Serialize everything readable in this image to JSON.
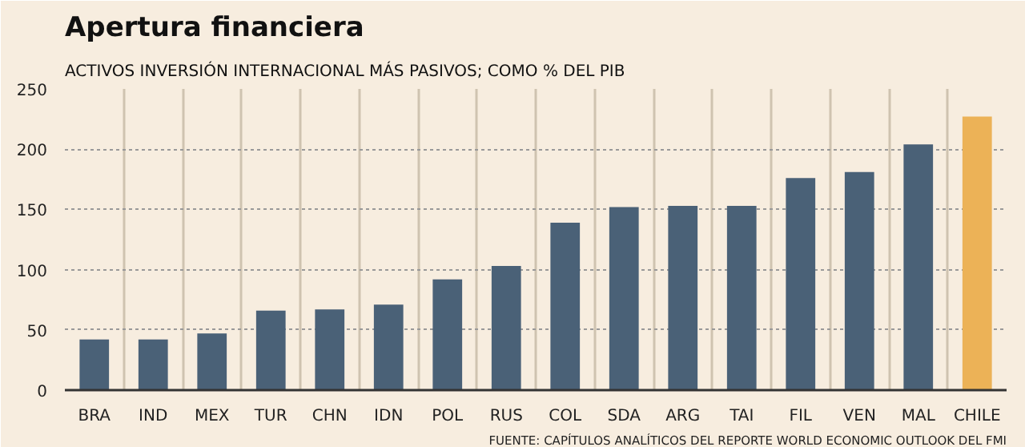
{
  "chart_data": {
    "type": "bar",
    "title": "Apertura financiera",
    "subtitle": "ACTIVOS INVERSIÓN INTERNACIONAL MÁS PASIVOS; COMO % DEL PIB",
    "categories": [
      "BRA",
      "IND",
      "MEX",
      "TUR",
      "CHN",
      "IDN",
      "POL",
      "RUS",
      "COL",
      "SDA",
      "ARG",
      "TAI",
      "FIL",
      "VEN",
      "MAL",
      "CHILE"
    ],
    "values": [
      42,
      42,
      47,
      66,
      67,
      71,
      92,
      103,
      139,
      152,
      153,
      153,
      176,
      181,
      204,
      227
    ],
    "colors": [
      "#4a6177",
      "#4a6177",
      "#4a6177",
      "#4a6177",
      "#4a6177",
      "#4a6177",
      "#4a6177",
      "#4a6177",
      "#4a6177",
      "#4a6177",
      "#4a6177",
      "#4a6177",
      "#4a6177",
      "#4a6177",
      "#4a6177",
      "#ecb257"
    ],
    "ylim": [
      0,
      250
    ],
    "yticks": [
      0,
      50,
      100,
      150,
      200,
      250
    ],
    "grid": true,
    "annotations": [
      "FUENTE: CAPÍTULOS ANALÍTICOS DEL REPORTE WORLD ECONOMIC OUTLOOK DEL FMI"
    ]
  }
}
